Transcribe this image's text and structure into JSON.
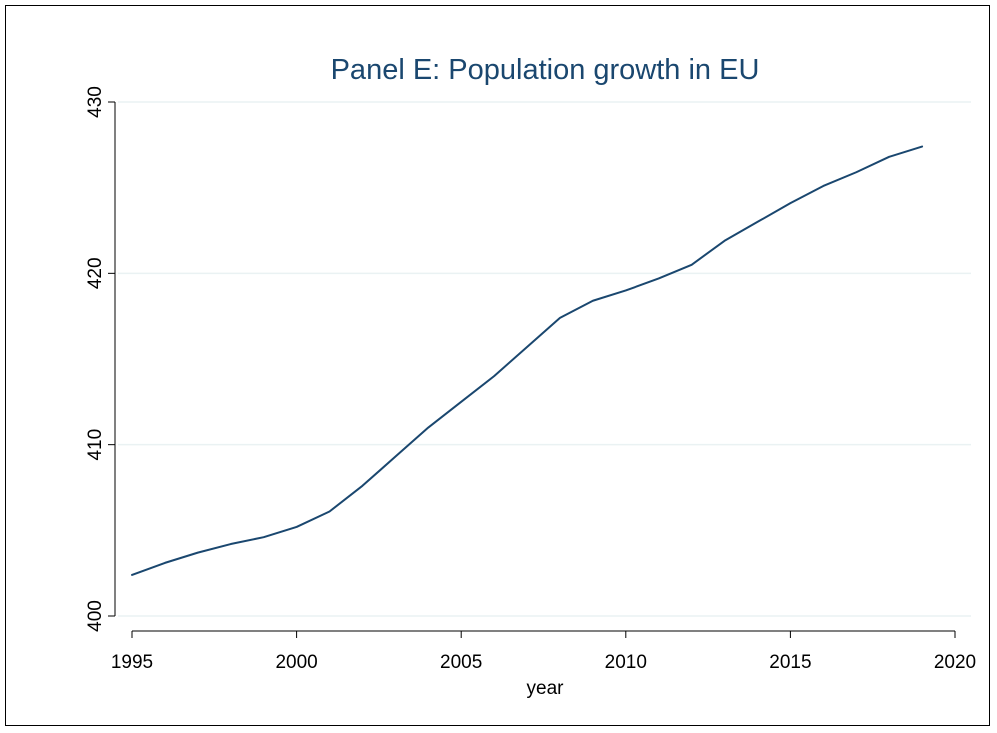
{
  "chart_data": {
    "type": "line",
    "title": "Panel E: Population growth in EU",
    "xlabel": "year",
    "ylabel": "",
    "xlim": [
      1995,
      2020
    ],
    "ylim": [
      400,
      430
    ],
    "x_ticks": [
      1995,
      2000,
      2005,
      2010,
      2015,
      2020
    ],
    "y_ticks": [
      400,
      410,
      420,
      430
    ],
    "grid": true,
    "legend": "none",
    "colors": {
      "line": "#1a476f",
      "grid": "#eaf2f3",
      "title": "#1a476f",
      "axis": "#000000"
    },
    "series": [
      {
        "x": [
          1995,
          1996,
          1997,
          1998,
          1999,
          2000,
          2001,
          2002,
          2003,
          2004,
          2005,
          2006,
          2007,
          2008,
          2009,
          2010,
          2011,
          2012,
          2013,
          2014,
          2015,
          2016,
          2017,
          2018,
          2019
        ],
        "values": [
          402.4,
          403.1,
          403.7,
          404.2,
          404.6,
          405.2,
          406.1,
          407.6,
          409.3,
          411.0,
          412.5,
          414.0,
          415.7,
          417.4,
          418.4,
          419.0,
          419.7,
          420.5,
          421.9,
          423.0,
          424.1,
          425.1,
          425.9,
          426.8,
          427.4
        ]
      }
    ]
  }
}
